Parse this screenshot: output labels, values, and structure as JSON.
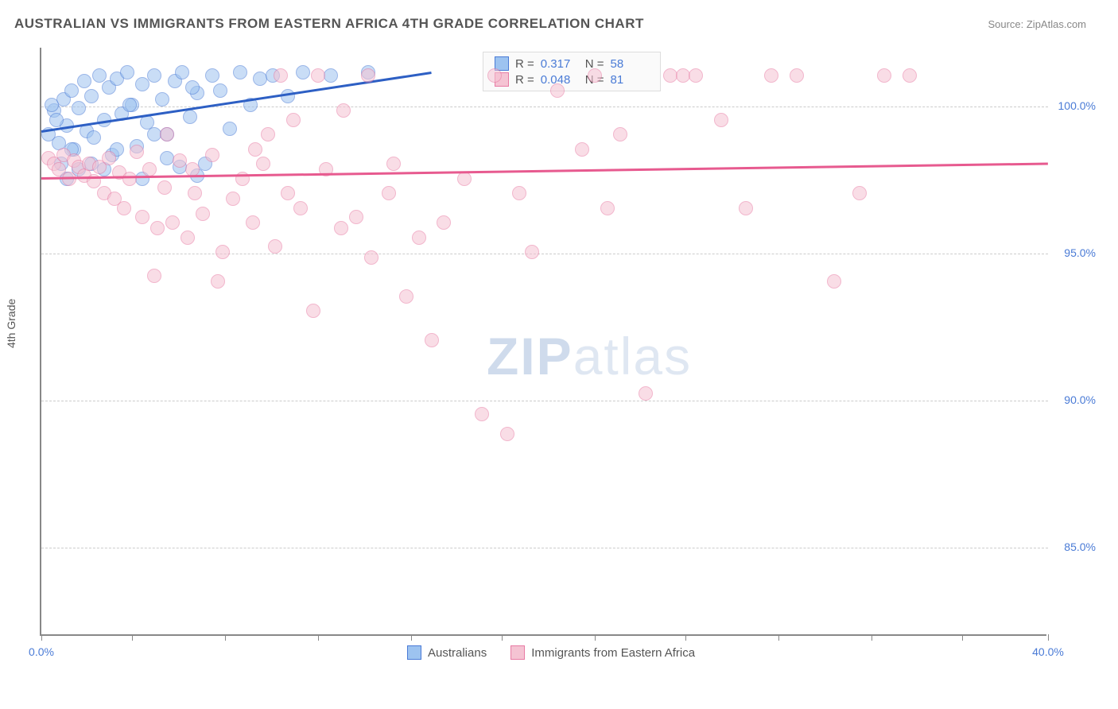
{
  "header": {
    "title": "AUSTRALIAN VS IMMIGRANTS FROM EASTERN AFRICA 4TH GRADE CORRELATION CHART",
    "source": "Source: ZipAtlas.com"
  },
  "chart": {
    "type": "scatter",
    "ylabel": "4th Grade",
    "xlim": [
      0,
      40
    ],
    "ylim": [
      82,
      102
    ],
    "yticks": [
      85,
      90,
      95,
      100
    ],
    "ytick_labels": [
      "85.0%",
      "90.0%",
      "95.0%",
      "100.0%"
    ],
    "xtick_positions": [
      0,
      3.6,
      7.3,
      11.0,
      14.7,
      18.3,
      22.0,
      25.6,
      29.3,
      33.0,
      36.6,
      40.0
    ],
    "xtick_labels_shown": {
      "0": "0.0%",
      "40": "40.0%"
    },
    "background_color": "#ffffff",
    "grid_color": "#cccccc",
    "axis_color": "#888888",
    "marker_radius": 9,
    "marker_opacity": 0.55,
    "series": [
      {
        "name": "Australians",
        "color_fill": "#9dc3f0",
        "color_stroke": "#4a7bd6",
        "R": "0.317",
        "N": "58",
        "trend": {
          "x1": 0,
          "y1": 99.2,
          "x2": 15.5,
          "y2": 101.2,
          "color": "#2d5fc4",
          "width": 2.5
        },
        "points": [
          [
            0.3,
            99.0
          ],
          [
            0.5,
            99.8
          ],
          [
            0.7,
            98.7
          ],
          [
            0.9,
            100.2
          ],
          [
            1.0,
            99.3
          ],
          [
            1.2,
            100.5
          ],
          [
            1.3,
            98.5
          ],
          [
            1.5,
            99.9
          ],
          [
            1.7,
            100.8
          ],
          [
            1.8,
            99.1
          ],
          [
            2.0,
            100.3
          ],
          [
            2.1,
            98.9
          ],
          [
            2.3,
            101.0
          ],
          [
            2.5,
            99.5
          ],
          [
            2.7,
            100.6
          ],
          [
            2.8,
            98.3
          ],
          [
            3.0,
            100.9
          ],
          [
            3.2,
            99.7
          ],
          [
            3.4,
            101.1
          ],
          [
            3.6,
            100.0
          ],
          [
            3.8,
            98.6
          ],
          [
            4.0,
            100.7
          ],
          [
            4.2,
            99.4
          ],
          [
            4.5,
            101.0
          ],
          [
            4.8,
            100.2
          ],
          [
            5.0,
            99.0
          ],
          [
            5.3,
            100.8
          ],
          [
            5.6,
            101.1
          ],
          [
            5.9,
            99.6
          ],
          [
            6.2,
            100.4
          ],
          [
            6.5,
            98.0
          ],
          [
            6.8,
            101.0
          ],
          [
            7.1,
            100.5
          ],
          [
            7.5,
            99.2
          ],
          [
            7.9,
            101.1
          ],
          [
            8.3,
            100.0
          ],
          [
            8.7,
            100.9
          ],
          [
            9.2,
            101.0
          ],
          [
            9.8,
            100.3
          ],
          [
            10.4,
            101.1
          ],
          [
            2.0,
            98.0
          ],
          [
            2.5,
            97.8
          ],
          [
            3.0,
            98.5
          ],
          [
            3.5,
            100.0
          ],
          [
            4.0,
            97.5
          ],
          [
            4.5,
            99.0
          ],
          [
            5.0,
            98.2
          ],
          [
            5.5,
            97.9
          ],
          [
            6.0,
            100.6
          ],
          [
            6.2,
            97.6
          ],
          [
            1.0,
            97.5
          ],
          [
            1.5,
            97.8
          ],
          [
            0.8,
            98.0
          ],
          [
            1.2,
            98.5
          ],
          [
            0.6,
            99.5
          ],
          [
            0.4,
            100.0
          ],
          [
            11.5,
            101.0
          ],
          [
            13.0,
            101.1
          ]
        ]
      },
      {
        "name": "Immigants_EA",
        "label": "Immigrants from Eastern Africa",
        "color_fill": "#f5c3d3",
        "color_stroke": "#e87ba4",
        "R": "0.048",
        "N": "81",
        "trend": {
          "x1": 0,
          "y1": 97.6,
          "x2": 40.0,
          "y2": 98.1,
          "color": "#e75a8f",
          "width": 2.5
        },
        "points": [
          [
            0.3,
            98.2
          ],
          [
            0.5,
            98.0
          ],
          [
            0.7,
            97.8
          ],
          [
            0.9,
            98.3
          ],
          [
            1.1,
            97.5
          ],
          [
            1.3,
            98.1
          ],
          [
            1.5,
            97.9
          ],
          [
            1.7,
            97.6
          ],
          [
            1.9,
            98.0
          ],
          [
            2.1,
            97.4
          ],
          [
            2.3,
            97.9
          ],
          [
            2.5,
            97.0
          ],
          [
            2.7,
            98.2
          ],
          [
            2.9,
            96.8
          ],
          [
            3.1,
            97.7
          ],
          [
            3.3,
            96.5
          ],
          [
            3.5,
            97.5
          ],
          [
            3.8,
            98.4
          ],
          [
            4.0,
            96.2
          ],
          [
            4.3,
            97.8
          ],
          [
            4.6,
            95.8
          ],
          [
            4.9,
            97.2
          ],
          [
            5.2,
            96.0
          ],
          [
            5.5,
            98.1
          ],
          [
            5.8,
            95.5
          ],
          [
            6.1,
            97.0
          ],
          [
            6.4,
            96.3
          ],
          [
            6.8,
            98.3
          ],
          [
            7.2,
            95.0
          ],
          [
            7.6,
            96.8
          ],
          [
            8.0,
            97.5
          ],
          [
            8.4,
            96.0
          ],
          [
            8.8,
            98.0
          ],
          [
            9.3,
            95.2
          ],
          [
            9.8,
            97.0
          ],
          [
            10.3,
            96.5
          ],
          [
            10.8,
            93.0
          ],
          [
            11.3,
            97.8
          ],
          [
            11.9,
            95.8
          ],
          [
            12.5,
            96.2
          ],
          [
            13.1,
            94.8
          ],
          [
            13.8,
            97.0
          ],
          [
            14.5,
            93.5
          ],
          [
            15.0,
            95.5
          ],
          [
            15.5,
            92.0
          ],
          [
            16.0,
            96.0
          ],
          [
            16.8,
            97.5
          ],
          [
            17.5,
            89.5
          ],
          [
            18.0,
            101.0
          ],
          [
            18.5,
            88.8
          ],
          [
            19.0,
            97.0
          ],
          [
            19.5,
            95.0
          ],
          [
            20.5,
            100.5
          ],
          [
            21.5,
            98.5
          ],
          [
            22.0,
            101.0
          ],
          [
            22.5,
            96.5
          ],
          [
            23.0,
            99.0
          ],
          [
            24.0,
            90.2
          ],
          [
            25.0,
            101.0
          ],
          [
            25.5,
            101.0
          ],
          [
            26.0,
            101.0
          ],
          [
            27.0,
            99.5
          ],
          [
            28.0,
            96.5
          ],
          [
            29.0,
            101.0
          ],
          [
            30.0,
            101.0
          ],
          [
            31.5,
            94.0
          ],
          [
            32.5,
            97.0
          ],
          [
            33.5,
            101.0
          ],
          [
            34.5,
            101.0
          ],
          [
            8.5,
            98.5
          ],
          [
            9.0,
            99.0
          ],
          [
            9.5,
            101.0
          ],
          [
            10.0,
            99.5
          ],
          [
            11.0,
            101.0
          ],
          [
            12.0,
            99.8
          ],
          [
            13.0,
            101.0
          ],
          [
            14.0,
            98.0
          ],
          [
            7.0,
            94.0
          ],
          [
            6.0,
            97.8
          ],
          [
            5.0,
            99.0
          ],
          [
            4.5,
            94.2
          ]
        ]
      }
    ],
    "legend_bottom": [
      {
        "label": "Australians",
        "fill": "#9dc3f0",
        "stroke": "#4a7bd6"
      },
      {
        "label": "Immigrants from Eastern Africa",
        "fill": "#f5c3d3",
        "stroke": "#e87ba4"
      }
    ],
    "watermark": "ZIPatlas"
  }
}
